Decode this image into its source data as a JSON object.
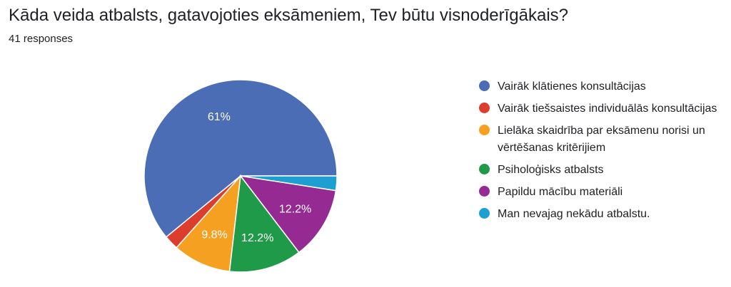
{
  "header": {
    "title": "Kāda veida atbalsts, gatavojoties eksāmeniem, Tev būtu visnoderīgākais?",
    "responses": "41 responses"
  },
  "chart_data": {
    "type": "pie",
    "total_responses": 41,
    "slices": [
      {
        "label": "Vairāk klātienes konsultācijas",
        "value": 25,
        "percent": 61,
        "percent_label": "61%",
        "color": "#4a6db5"
      },
      {
        "label": "Vairāk tiešsaistes individuālās konsultācijas",
        "value": 1,
        "percent": 2.4,
        "percent_label": "",
        "color": "#dc3d2d"
      },
      {
        "label": "Lielāka skaidrība par eksāmenu norisi un vērtēšanas kritērijiem",
        "value": 4,
        "percent": 9.8,
        "percent_label": "9.8%",
        "color": "#f5a021"
      },
      {
        "label": "Psiholoģisks atbalsts",
        "value": 5,
        "percent": 12.2,
        "percent_label": "12.2%",
        "color": "#1f9a49"
      },
      {
        "label": "Papildu mācību materiāli",
        "value": 5,
        "percent": 12.2,
        "percent_label": "12.2%",
        "color": "#952a93"
      },
      {
        "label": "Man nevajag nekādu atbalstu.",
        "value": 1,
        "percent": 2.4,
        "percent_label": "",
        "color": "#1d9fd1"
      }
    ],
    "legend_position": "right"
  }
}
